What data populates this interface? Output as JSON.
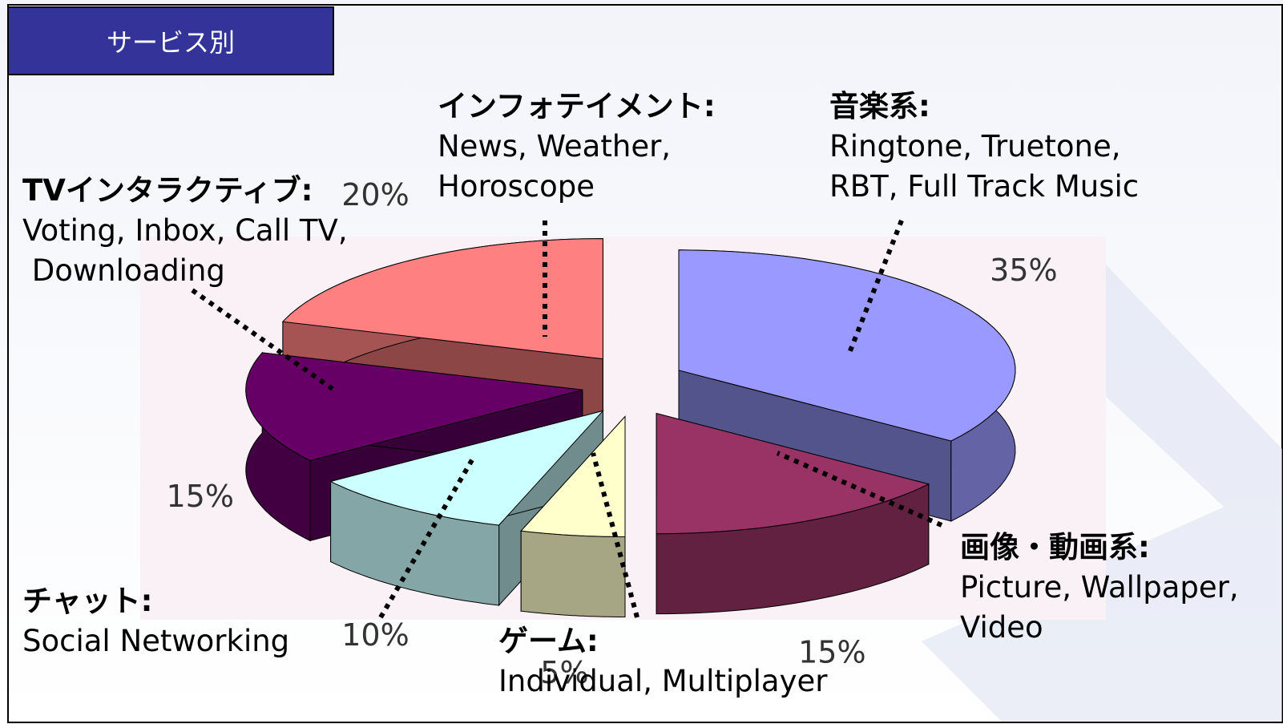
{
  "chart_data": {
    "type": "pie3d",
    "title": "サービス別",
    "categories": [
      "音楽系:",
      "画像・動画系:",
      "ゲーム:",
      "チャット:",
      "TVインタラクティブ:",
      "インフォテイメント:"
    ],
    "descriptions": [
      [
        "Ringtone, Truetone,",
        "RBT, Full Track Music"
      ],
      [
        "Picture, Wallpaper,",
        "Video"
      ],
      [
        "Individual, Multiplayer"
      ],
      [
        "Social Networking"
      ],
      [
        "Voting, Inbox, Call TV,",
        " Downloading"
      ],
      [
        "News, Weather,",
        "Horoscope"
      ]
    ],
    "values": [
      35,
      15,
      5,
      10,
      15,
      20
    ],
    "value_labels": [
      "35%",
      "15%",
      "5%",
      "10%",
      "15%",
      "20%"
    ],
    "colors": [
      "#9999ff",
      "#993366",
      "#ffffcc",
      "#ccffff",
      "#660066",
      "#ff8080"
    ]
  }
}
